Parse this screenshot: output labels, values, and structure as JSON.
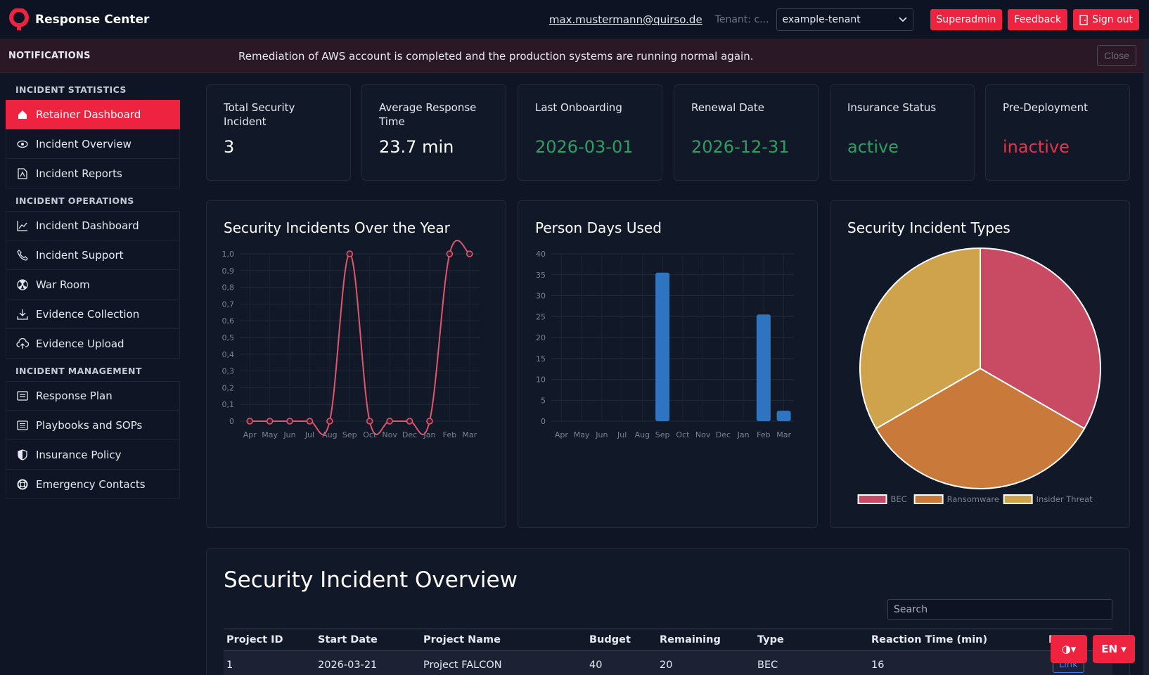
{
  "app": {
    "title": "Response Center"
  },
  "header": {
    "user_email": "max.mustermann@quirso.de",
    "tenant_label": "Tenant: c...",
    "tenant_value": "example-tenant",
    "superadmin_label": "Superadmin",
    "feedback_label": "Feedback",
    "signout_label": "Sign out"
  },
  "notification": {
    "title": "NOTIFICATIONS",
    "message": "Remediation of AWS account is completed and the production systems are running normal again.",
    "close_label": "Close"
  },
  "sidebar": {
    "sections": [
      {
        "title": "INCIDENT STATISTICS",
        "items": [
          {
            "label": "Retainer Dashboard",
            "icon": "home-icon",
            "active": true
          },
          {
            "label": "Incident Overview",
            "icon": "eye-icon"
          },
          {
            "label": "Incident Reports",
            "icon": "file-pdf-icon"
          }
        ]
      },
      {
        "title": "INCIDENT OPERATIONS",
        "items": [
          {
            "label": "Incident Dashboard",
            "icon": "line-chart-icon"
          },
          {
            "label": "Incident Support",
            "icon": "phone-icon"
          },
          {
            "label": "War Room",
            "icon": "radiation-icon"
          },
          {
            "label": "Evidence Collection",
            "icon": "download-icon"
          },
          {
            "label": "Evidence Upload",
            "icon": "cloud-upload-icon"
          }
        ]
      },
      {
        "title": "INCIDENT MANAGEMENT",
        "items": [
          {
            "label": "Response Plan",
            "icon": "card-list-icon"
          },
          {
            "label": "Playbooks and SOPs",
            "icon": "list-icon"
          },
          {
            "label": "Insurance Policy",
            "icon": "shield-icon"
          },
          {
            "label": "Emergency Contacts",
            "icon": "life-ring-icon"
          }
        ]
      }
    ]
  },
  "stats": [
    {
      "label": "Total Security Incident",
      "value": "3",
      "color": "default"
    },
    {
      "label": "Average Response Time",
      "value": "23.7 min",
      "color": "default"
    },
    {
      "label": "Last Onboarding",
      "value": "2026-03-01",
      "color": "green"
    },
    {
      "label": "Renewal Date",
      "value": "2026-12-31",
      "color": "green"
    },
    {
      "label": "Insurance Status",
      "value": "active",
      "color": "green"
    },
    {
      "label": "Pre-Deployment",
      "value": "inactive",
      "color": "red"
    }
  ],
  "chart_data": [
    {
      "type": "line",
      "title": "Security Incidents Over the Year",
      "categories": [
        "Apr",
        "May",
        "Jun",
        "Jul",
        "Aug",
        "Sep",
        "Oct",
        "Nov",
        "Dec",
        "Jan",
        "Feb",
        "Mar"
      ],
      "values": [
        0,
        0,
        0,
        0,
        0,
        1,
        0,
        0,
        0,
        0,
        1,
        1
      ],
      "ylim": [
        0,
        1
      ],
      "yticks": [
        "0",
        "0,1",
        "0,2",
        "0,3",
        "0,4",
        "0,5",
        "0,6",
        "0,7",
        "0,8",
        "0,9",
        "1,0"
      ],
      "color": "#e0566e",
      "grid": true
    },
    {
      "type": "bar",
      "title": "Person Days Used",
      "categories": [
        "Apr",
        "May",
        "Jun",
        "Jul",
        "Aug",
        "Sep",
        "Oct",
        "Nov",
        "Dec",
        "Jan",
        "Feb",
        "Mar"
      ],
      "values": [
        0,
        0,
        0,
        0,
        0,
        35.5,
        0,
        0,
        0,
        0,
        25.5,
        2.5
      ],
      "ylim": [
        0,
        40
      ],
      "yticks": [
        "0",
        "5",
        "10",
        "15",
        "20",
        "25",
        "30",
        "35",
        "40"
      ],
      "color": "#2f74c0",
      "grid": true
    },
    {
      "type": "pie",
      "title": "Security Incident Types",
      "labels": [
        "BEC",
        "Ransomware",
        "Insider Threat"
      ],
      "values": [
        1,
        1,
        1
      ],
      "colors": [
        "#c84a63",
        "#c97a3a",
        "#cfa34c"
      ],
      "legend": "bottom"
    }
  ],
  "table": {
    "title": "Security Incident Overview",
    "search_placeholder": "Search",
    "columns": [
      "Project ID",
      "Start Date",
      "Project Name",
      "Budget",
      "Remaining",
      "Type",
      "Reaction Time (min)",
      "R"
    ],
    "rows": [
      [
        "1",
        "2026-03-21",
        "Project FALCON",
        "40",
        "20",
        "BEC",
        "16",
        "Link"
      ]
    ]
  },
  "floating": {
    "theme_label": "◑▾",
    "lang_label": "EN ▾"
  }
}
